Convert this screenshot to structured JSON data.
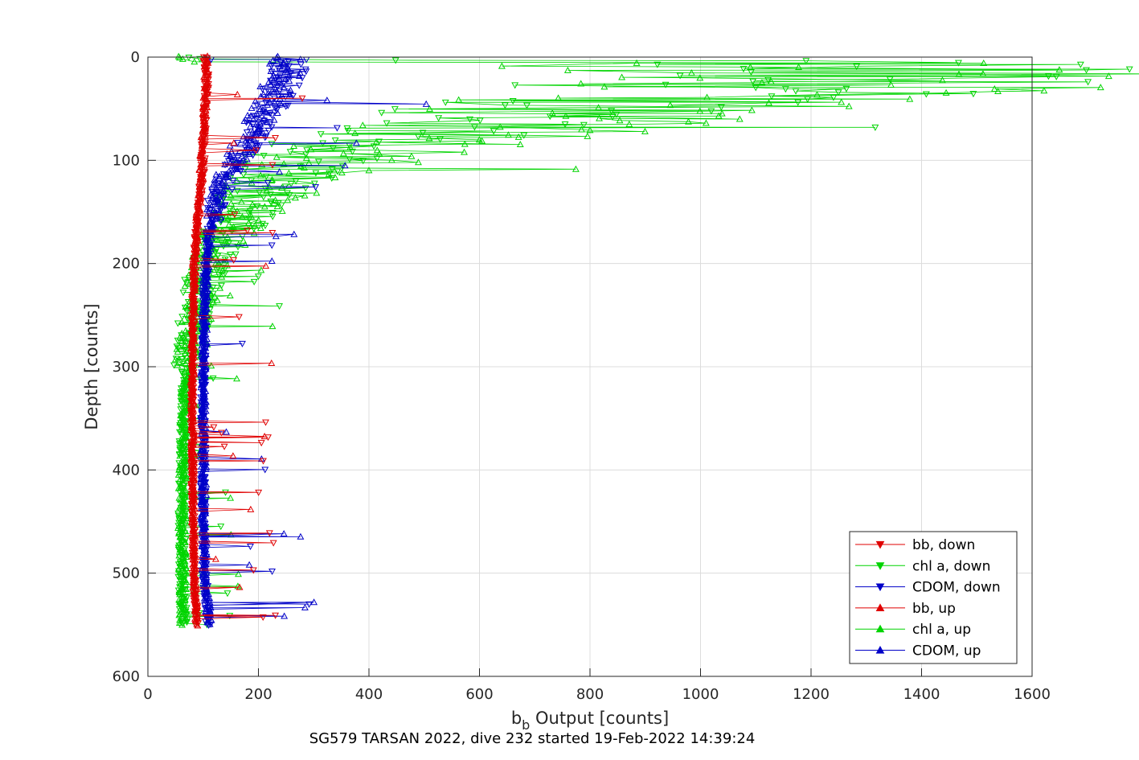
{
  "chart_data": {
    "type": "line",
    "title": "SG579 TARSAN 2022, dive 232 started 19-Feb-2022 14:39:24",
    "xlabel_main": "b",
    "xlabel_sub": "b",
    "xlabel_rest": " Output [counts]",
    "ylabel": "Depth [counts]",
    "xlim": [
      0,
      1600
    ],
    "ylim": [
      0,
      600
    ],
    "y_reversed": true,
    "grid": true,
    "legend_position": "lower-right",
    "xticks": [
      "0",
      "200",
      "400",
      "600",
      "800",
      "1000",
      "1200",
      "1400",
      "1600"
    ],
    "yticks": [
      "0",
      "100",
      "200",
      "300",
      "400",
      "500",
      "600"
    ],
    "series": [
      {
        "name": "bb, down",
        "color": "#e00000",
        "marker": "down",
        "profile": [
          [
            0,
            103
          ],
          [
            20,
            107
          ],
          [
            50,
            104
          ],
          [
            80,
            101
          ],
          [
            110,
            99
          ],
          [
            140,
            93
          ],
          [
            170,
            88
          ],
          [
            200,
            84
          ],
          [
            250,
            82
          ],
          [
            300,
            80
          ],
          [
            350,
            80
          ],
          [
            400,
            81
          ],
          [
            450,
            82
          ],
          [
            500,
            83
          ],
          [
            550,
            88
          ]
        ]
      },
      {
        "name": "chl a, down",
        "color": "#00d400",
        "marker": "down",
        "profile": [
          [
            2,
            500
          ],
          [
            5,
            1150
          ],
          [
            10,
            1350
          ],
          [
            20,
            1250
          ],
          [
            30,
            1180
          ],
          [
            45,
            850
          ],
          [
            60,
            700
          ],
          [
            80,
            420
          ],
          [
            95,
            300
          ],
          [
            110,
            260
          ],
          [
            130,
            220
          ],
          [
            150,
            190
          ],
          [
            175,
            140
          ],
          [
            200,
            110
          ],
          [
            250,
            85
          ],
          [
            300,
            70
          ],
          [
            350,
            65
          ],
          [
            400,
            63
          ],
          [
            450,
            62
          ],
          [
            500,
            62
          ],
          [
            550,
            65
          ]
        ]
      },
      {
        "name": "CDOM, down",
        "color": "#0000c8",
        "marker": "down",
        "profile": [
          [
            2,
            260
          ],
          [
            20,
            250
          ],
          [
            50,
            220
          ],
          [
            80,
            185
          ],
          [
            110,
            150
          ],
          [
            140,
            125
          ],
          [
            170,
            110
          ],
          [
            200,
            105
          ],
          [
            250,
            102
          ],
          [
            300,
            100
          ],
          [
            350,
            100
          ],
          [
            400,
            100
          ],
          [
            450,
            100
          ],
          [
            500,
            102
          ],
          [
            550,
            110
          ]
        ]
      },
      {
        "name": "bb, up",
        "color": "#e00000",
        "marker": "up",
        "profile": [
          [
            0,
            105
          ],
          [
            30,
            105
          ],
          [
            60,
            102
          ],
          [
            90,
            98
          ],
          [
            120,
            96
          ],
          [
            150,
            91
          ],
          [
            200,
            85
          ],
          [
            250,
            82
          ],
          [
            300,
            81
          ],
          [
            350,
            81
          ],
          [
            400,
            81
          ],
          [
            450,
            82
          ],
          [
            500,
            84
          ],
          [
            550,
            88
          ]
        ]
      },
      {
        "name": "chl a, up",
        "color": "#00d400",
        "marker": "up",
        "profile": [
          [
            5,
            1050
          ],
          [
            15,
            1250
          ],
          [
            30,
            1200
          ],
          [
            50,
            900
          ],
          [
            70,
            650
          ],
          [
            90,
            430
          ],
          [
            110,
            280
          ],
          [
            130,
            220
          ],
          [
            150,
            180
          ],
          [
            170,
            150
          ],
          [
            200,
            110
          ],
          [
            250,
            90
          ],
          [
            300,
            72
          ],
          [
            350,
            66
          ],
          [
            400,
            63
          ],
          [
            450,
            62
          ],
          [
            500,
            62
          ],
          [
            550,
            64
          ]
        ]
      },
      {
        "name": "CDOM, up",
        "color": "#0000c8",
        "marker": "up",
        "profile": [
          [
            0,
            255
          ],
          [
            20,
            245
          ],
          [
            50,
            215
          ],
          [
            80,
            180
          ],
          [
            110,
            145
          ],
          [
            140,
            125
          ],
          [
            170,
            112
          ],
          [
            200,
            106
          ],
          [
            250,
            103
          ],
          [
            300,
            101
          ],
          [
            350,
            101
          ],
          [
            400,
            101
          ],
          [
            450,
            101
          ],
          [
            500,
            103
          ],
          [
            550,
            112
          ]
        ]
      }
    ]
  }
}
